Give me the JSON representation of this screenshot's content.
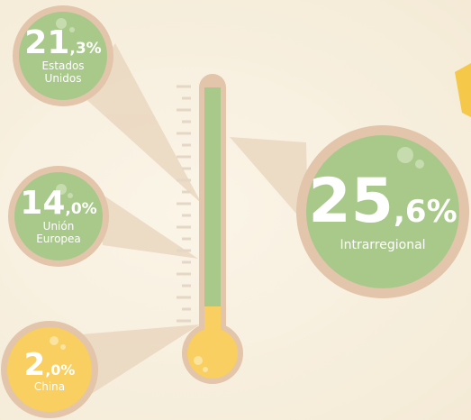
{
  "bubbles": [
    {
      "whole": "21",
      "fraction": ",3%",
      "label": "Estados Unidos"
    },
    {
      "whole": "14",
      "fraction": ",0%",
      "label": "Unión Europea"
    },
    {
      "whole": "2",
      "fraction": ",0%",
      "label": "China"
    },
    {
      "whole": "25",
      "fraction": ",6%",
      "label": "Intrarregional"
    }
  ]
}
